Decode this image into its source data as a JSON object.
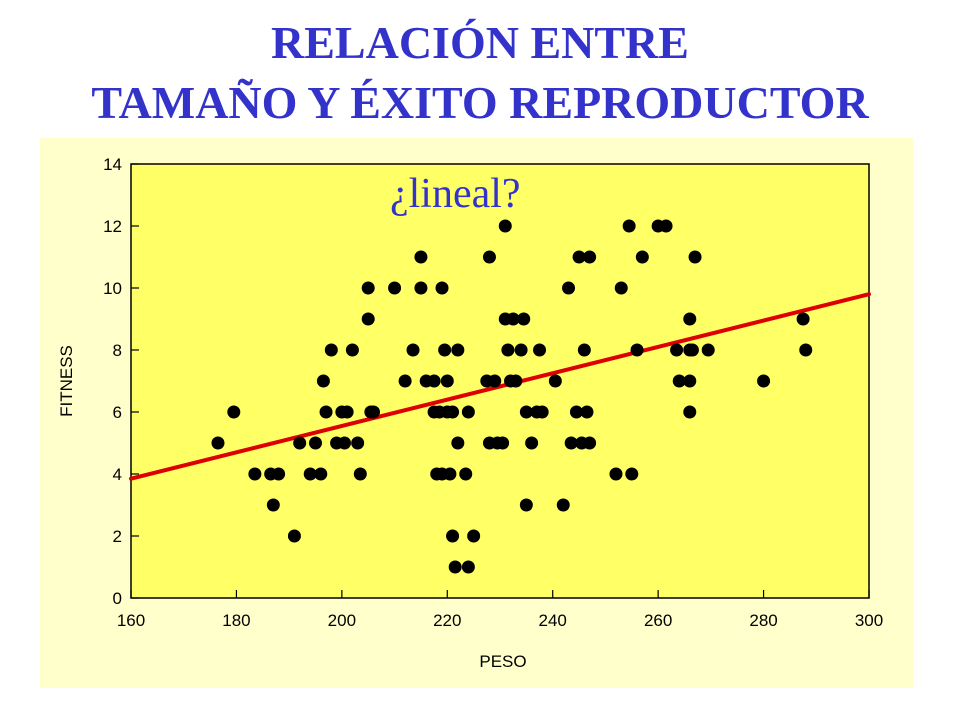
{
  "title_lines": [
    "RELACIÓN ENTRE",
    "TAMAÑO Y ÉXITO REPRODUCTOR"
  ],
  "colors": {
    "title": "#3333cc",
    "panel_background": "#ffffcc",
    "plot_background": "#ffff66",
    "points": "#000000",
    "trend_line": "#dd0000"
  },
  "chart_data": {
    "type": "scatter",
    "xlabel": "PESO",
    "ylabel": "FITNESS",
    "xlim": [
      160,
      300
    ],
    "ylim": [
      0,
      14
    ],
    "xticks": [
      160,
      180,
      200,
      220,
      240,
      260,
      280,
      300
    ],
    "yticks": [
      0,
      2,
      4,
      6,
      8,
      10,
      12,
      14
    ],
    "annotation": "¿lineal?",
    "grid": false,
    "trend_line": {
      "x": [
        160,
        300
      ],
      "y": [
        3.85,
        9.8
      ]
    },
    "points": [
      [
        176.5,
        5
      ],
      [
        179.5,
        6
      ],
      [
        183.5,
        4
      ],
      [
        186.5,
        4
      ],
      [
        187,
        3
      ],
      [
        188,
        4
      ],
      [
        191,
        2
      ],
      [
        192,
        5
      ],
      [
        194,
        4
      ],
      [
        195,
        5
      ],
      [
        196,
        4
      ],
      [
        196.5,
        7
      ],
      [
        197,
        6
      ],
      [
        198,
        8
      ],
      [
        199,
        5
      ],
      [
        200,
        6
      ],
      [
        200.5,
        5
      ],
      [
        201,
        6
      ],
      [
        202,
        8
      ],
      [
        203,
        5
      ],
      [
        203.5,
        4
      ],
      [
        205,
        10
      ],
      [
        205,
        9
      ],
      [
        205.5,
        6
      ],
      [
        206,
        6
      ],
      [
        210,
        10
      ],
      [
        212,
        7
      ],
      [
        213.5,
        8
      ],
      [
        215,
        11
      ],
      [
        215,
        10
      ],
      [
        216,
        7
      ],
      [
        217.5,
        7
      ],
      [
        217.5,
        6
      ],
      [
        218,
        4
      ],
      [
        218.5,
        6
      ],
      [
        219,
        10
      ],
      [
        219,
        4
      ],
      [
        219.5,
        8
      ],
      [
        220,
        6
      ],
      [
        220,
        7
      ],
      [
        220.5,
        4
      ],
      [
        221,
        2
      ],
      [
        221,
        6
      ],
      [
        221.5,
        1
      ],
      [
        222,
        8
      ],
      [
        222,
        5
      ],
      [
        223.5,
        4
      ],
      [
        224,
        1
      ],
      [
        224,
        6
      ],
      [
        225,
        2
      ],
      [
        227.5,
        7
      ],
      [
        228,
        11
      ],
      [
        228,
        5
      ],
      [
        229,
        7
      ],
      [
        229.5,
        5
      ],
      [
        230.5,
        5
      ],
      [
        231,
        12
      ],
      [
        231,
        9
      ],
      [
        231.5,
        8
      ],
      [
        232,
        7
      ],
      [
        232.5,
        9
      ],
      [
        233,
        7
      ],
      [
        234,
        8
      ],
      [
        234.5,
        9
      ],
      [
        235,
        6
      ],
      [
        235,
        3
      ],
      [
        236,
        5
      ],
      [
        237,
        6
      ],
      [
        237.5,
        8
      ],
      [
        238,
        6
      ],
      [
        240.5,
        7
      ],
      [
        242,
        3
      ],
      [
        243,
        10
      ],
      [
        243.5,
        5
      ],
      [
        244.5,
        6
      ],
      [
        245,
        11
      ],
      [
        245.5,
        5
      ],
      [
        246,
        8
      ],
      [
        246.5,
        6
      ],
      [
        247,
        11
      ],
      [
        247,
        5
      ],
      [
        252,
        4
      ],
      [
        253,
        10
      ],
      [
        254.5,
        12
      ],
      [
        255,
        4
      ],
      [
        256,
        8
      ],
      [
        257,
        11
      ],
      [
        260,
        12
      ],
      [
        261.5,
        12
      ],
      [
        263.5,
        8
      ],
      [
        264,
        7
      ],
      [
        266,
        9
      ],
      [
        266,
        8
      ],
      [
        266,
        7
      ],
      [
        266,
        6
      ],
      [
        266.5,
        8
      ],
      [
        267,
        11
      ],
      [
        269.5,
        8
      ],
      [
        280,
        7
      ],
      [
        287.5,
        9
      ],
      [
        288,
        8
      ]
    ]
  }
}
